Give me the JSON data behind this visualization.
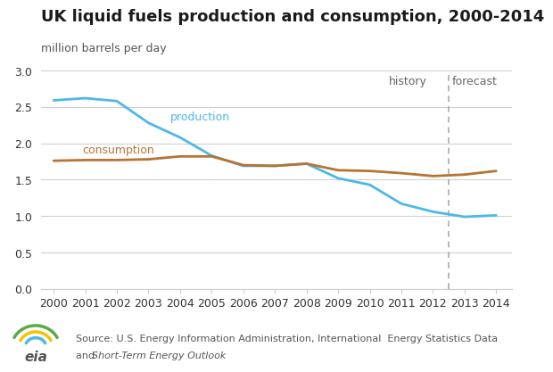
{
  "title": "UK liquid fuels production and consumption, 2000-2014",
  "ylabel": "million barrels per day",
  "ylim": [
    0.0,
    3.0
  ],
  "yticks": [
    0.0,
    0.5,
    1.0,
    1.5,
    2.0,
    2.5,
    3.0
  ],
  "xlim": [
    1999.6,
    2014.5
  ],
  "forecast_x": 2012.5,
  "history_label": "history",
  "forecast_label": "forecast",
  "production_label": "production",
  "consumption_label": "consumption",
  "production_color": "#4db8e8",
  "consumption_color": "#b87333",
  "production_years": [
    2000,
    2001,
    2002,
    2003,
    2004,
    2005,
    2006,
    2007,
    2008,
    2009,
    2010,
    2011,
    2012,
    2013,
    2014
  ],
  "production_values": [
    2.59,
    2.62,
    2.58,
    2.28,
    2.08,
    1.83,
    1.69,
    1.69,
    1.72,
    1.52,
    1.43,
    1.17,
    1.06,
    0.99,
    1.01
  ],
  "consumption_years": [
    2000,
    2001,
    2002,
    2003,
    2004,
    2005,
    2006,
    2007,
    2008,
    2009,
    2010,
    2011,
    2012,
    2013,
    2014
  ],
  "consumption_values": [
    1.76,
    1.77,
    1.77,
    1.78,
    1.82,
    1.82,
    1.7,
    1.69,
    1.72,
    1.63,
    1.62,
    1.59,
    1.55,
    1.57,
    1.62
  ],
  "background_color": "#ffffff",
  "grid_color": "#d0d0d0",
  "title_fontsize": 13,
  "ylabel_fontsize": 9,
  "label_fontsize": 9,
  "axis_fontsize": 9,
  "source_fontsize": 8,
  "history_forecast_fontsize": 9,
  "history_color": "#666666",
  "forecast_color": "#666666",
  "dashed_color": "#aaaaaa",
  "spine_color": "#cccccc",
  "tick_color": "#888888"
}
